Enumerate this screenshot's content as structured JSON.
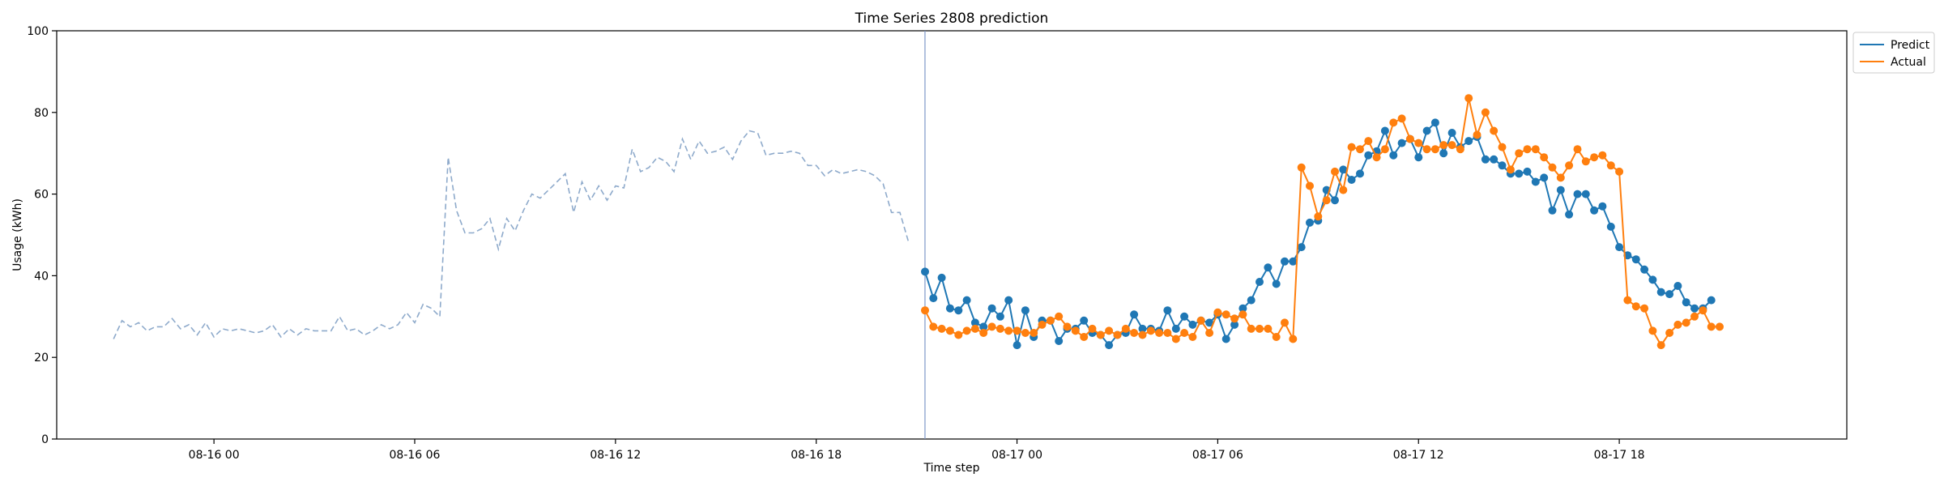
{
  "chart_data": {
    "type": "line",
    "title": "Time Series 2808 prediction",
    "xlabel": "Time step",
    "ylabel": "Usage (kWh)",
    "ylim": [
      0,
      100
    ],
    "yticks": [
      0,
      20,
      40,
      60,
      80,
      100
    ],
    "x_unit": "hours",
    "xlim": [
      -4.7,
      48.8
    ],
    "xticks": [
      {
        "x": 0,
        "label": "08-16 00"
      },
      {
        "x": 6,
        "label": "08-16 06"
      },
      {
        "x": 12,
        "label": "08-16 12"
      },
      {
        "x": 18,
        "label": "08-16 18"
      },
      {
        "x": 24,
        "label": "08-17 00"
      },
      {
        "x": 30,
        "label": "08-17 06"
      },
      {
        "x": 36,
        "label": "08-17 12"
      },
      {
        "x": 42,
        "label": "08-17 18"
      }
    ],
    "split_x": 21.25,
    "history": {
      "x_start": -3.0,
      "x_step": 0.25,
      "values": [
        24.5,
        29,
        27.5,
        28.5,
        26.5,
        27.5,
        27.5,
        29.5,
        27,
        28,
        25.5,
        28.5,
        25,
        27,
        26.5,
        27,
        26.5,
        26,
        26.5,
        28,
        25,
        27,
        25.5,
        27,
        26.5,
        26.5,
        26.5,
        30,
        26.5,
        27,
        25.5,
        26.5,
        28,
        27,
        28,
        31,
        28.5,
        33,
        32,
        30,
        69,
        56,
        50.5,
        50.5,
        51.5,
        54,
        46.5,
        54,
        51,
        56,
        60,
        59,
        61,
        63,
        65,
        55.5,
        63,
        58.5,
        62,
        58.5,
        62,
        61.5,
        71,
        65.5,
        66.5,
        69,
        68,
        65.5,
        73.5,
        68.5,
        73,
        70,
        70.5,
        71.5,
        68.5,
        73,
        75.5,
        75,
        69.5,
        70,
        70,
        70.5,
        70,
        67,
        67,
        64.5,
        66,
        65,
        65.5,
        66,
        65.5,
        64.5,
        62.5,
        55.5,
        55.5,
        48.5
      ]
    },
    "series": [
      {
        "name": "Predict",
        "x_start": 21.25,
        "x_step": 0.25,
        "values": [
          41,
          34.5,
          39.5,
          32,
          31.5,
          34,
          28.5,
          27.5,
          32,
          30,
          34,
          23,
          31.5,
          25,
          29,
          29,
          24,
          27,
          27,
          29,
          26,
          25.5,
          23,
          25.5,
          26,
          30.5,
          27,
          27,
          26.5,
          31.5,
          27,
          30,
          28,
          29,
          28.5,
          30.5,
          24.5,
          28,
          32,
          34,
          38.5,
          42,
          38,
          43.5,
          43.5,
          47,
          53,
          53.5,
          61,
          58.5,
          66,
          63.5,
          65,
          69.5,
          70.5,
          75.5,
          69.5,
          72.5,
          73.5,
          69,
          75.5,
          77.5,
          70,
          75,
          71.5,
          73,
          74,
          68.5,
          68.5,
          67,
          65,
          65,
          65.5,
          63,
          64,
          56,
          61,
          55,
          60,
          60,
          56,
          57,
          52,
          47,
          45,
          44,
          41.5,
          39,
          36,
          35.5,
          37.5,
          33.5,
          32,
          32,
          34
        ]
      },
      {
        "name": "Actual",
        "x_start": 21.25,
        "x_step": 0.25,
        "values": [
          31.5,
          27.5,
          27,
          26.5,
          25.5,
          26.5,
          27,
          26,
          27.5,
          27,
          26.5,
          26.5,
          26,
          26,
          28,
          29,
          30,
          27.5,
          26.5,
          25,
          27,
          25.5,
          26.5,
          25.5,
          27,
          26,
          25.5,
          26.5,
          26,
          26,
          24.5,
          26,
          25,
          29,
          26,
          31,
          30.5,
          29.5,
          30.5,
          27,
          27,
          27,
          25,
          28.5,
          24.5,
          66.5,
          62,
          54.5,
          58.5,
          65.5,
          61,
          71.5,
          71,
          73,
          69,
          71,
          77.5,
          78.5,
          73.5,
          72.5,
          71,
          71,
          72,
          72,
          71,
          83.5,
          74.5,
          80,
          75.5,
          71.5,
          66,
          70,
          71,
          71,
          69,
          66.5,
          64,
          67,
          71,
          68,
          69,
          69.5,
          67,
          65.5,
          34,
          32.5,
          32,
          26.5,
          23,
          26,
          28,
          28.5,
          30,
          31.5,
          27.5,
          27.5
        ]
      }
    ],
    "colors": {
      "Predict": "#1f77b4",
      "Actual": "#ff7f0e",
      "history": "#8eaacb",
      "split": "#7f97c8"
    },
    "legend_position": "top-right outside",
    "grid": false
  }
}
